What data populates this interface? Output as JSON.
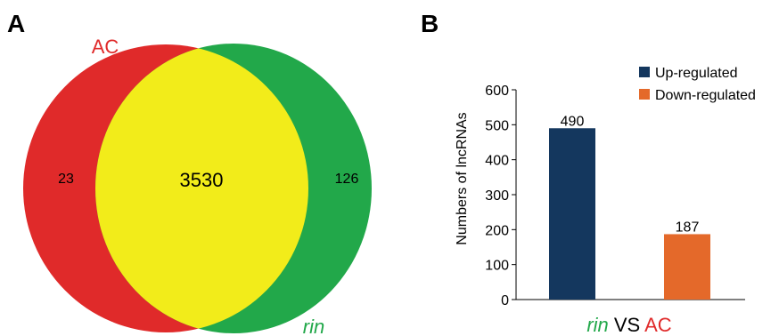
{
  "colors": {
    "ac_red": "#e02a2a",
    "rin_green": "#22a84a",
    "overlap_yellow": "#f2ec1a",
    "up_navy": "#14375e",
    "down_orange": "#e4692a",
    "axis": "#000000"
  },
  "chart_data": [
    {
      "panel": "A",
      "type": "venn",
      "sets": [
        {
          "name": "AC",
          "color": "#e02a2a",
          "only": "23"
        },
        {
          "name": "rin",
          "color": "#22a84a",
          "only": "126"
        }
      ],
      "intersection": "3530"
    },
    {
      "panel": "B",
      "type": "bar",
      "title": "",
      "ylabel": "Numbers of lncRNAs",
      "xlabel_parts": [
        {
          "text": "rin",
          "color": "#22a84a",
          "italic": true
        },
        {
          "text": " VS ",
          "color": "#000000",
          "italic": false
        },
        {
          "text": "AC",
          "color": "#e02a2a",
          "italic": false
        }
      ],
      "ylim": [
        0,
        600
      ],
      "yticks": [
        0,
        100,
        200,
        300,
        400,
        500,
        600
      ],
      "legend_position": "top-right",
      "series": [
        {
          "name": "Up-regulated",
          "color": "#14375e",
          "value": 490,
          "label": "490"
        },
        {
          "name": "Down-regulated",
          "color": "#e4692a",
          "value": 187,
          "label": "187"
        }
      ]
    }
  ]
}
